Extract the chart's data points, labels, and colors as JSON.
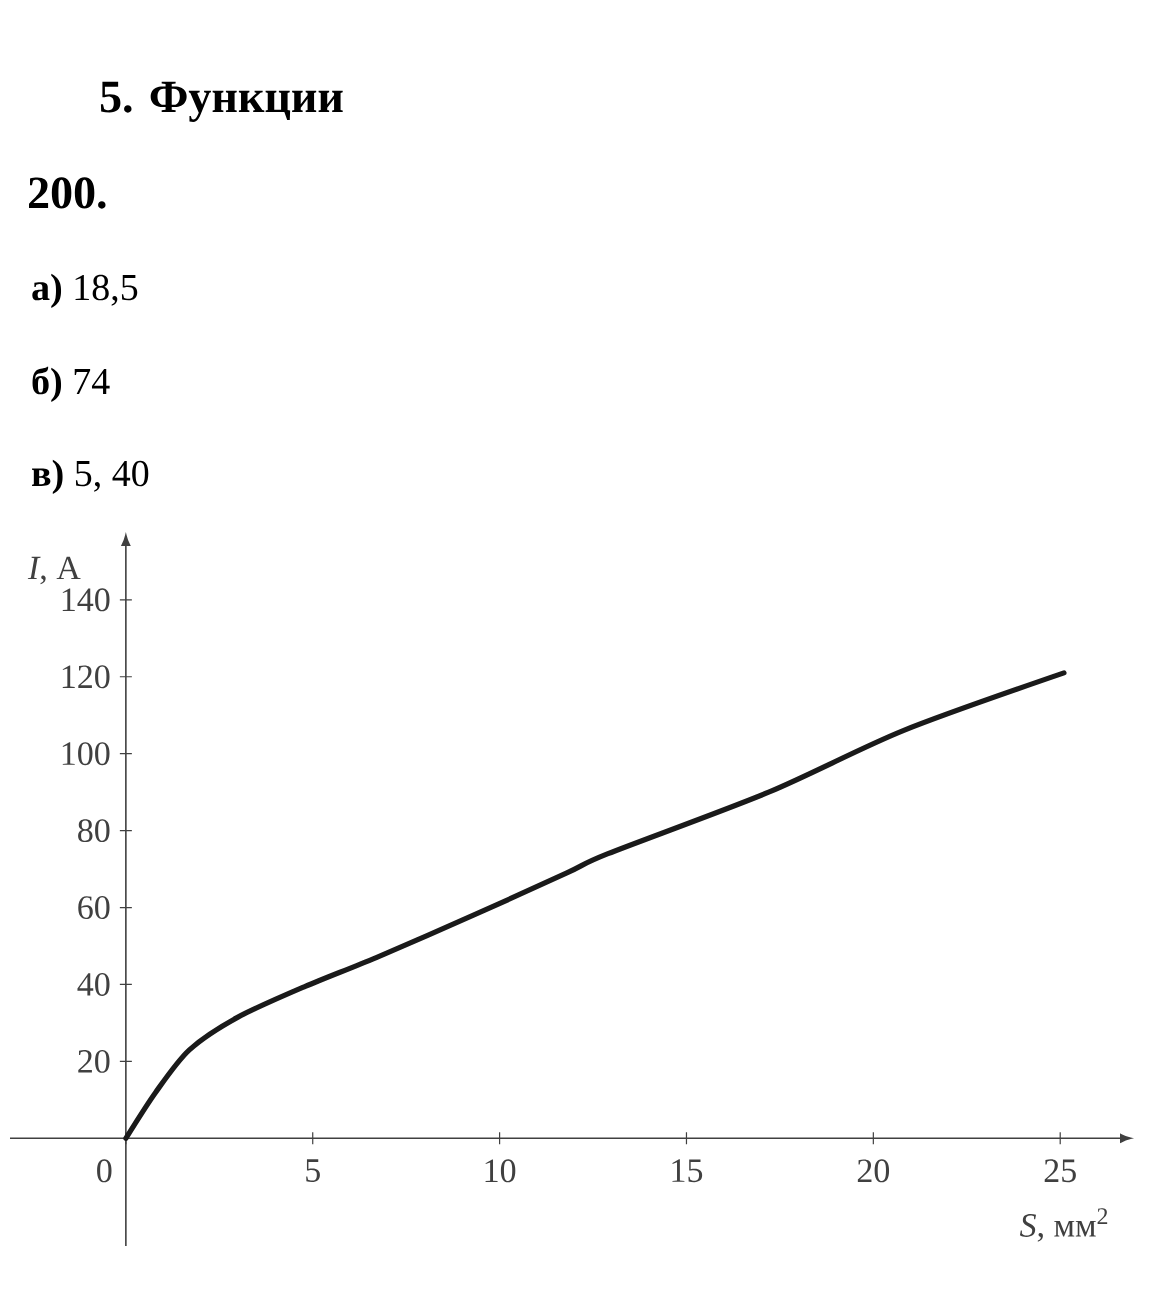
{
  "chart_data": {
    "type": "line",
    "title": "5. Функции",
    "subtitle": "200.",
    "annotations": [
      "**а)** 18,5",
      "**б)** 74",
      "**в)** 5, 40"
    ],
    "xlabel": "*S*, мм$^{2}$",
    "ylabel": "*I*, А",
    "x": [
      0,
      0.8,
      1.7,
      3,
      4.8,
      6.7,
      9.3,
      11.8,
      12.9,
      17.2,
      20.8,
      25.1
    ],
    "series": [
      {
        "color": "#1a1a1a",
        "values": [
          0,
          12,
          23,
          31.5,
          39.5,
          47,
          58,
          69,
          74,
          90,
          106,
          121
        ]
      }
    ],
    "xlim": [
      -3.1,
      26.6
    ],
    "ylim": [
      -28,
      154
    ],
    "xticks": [
      0,
      5,
      10,
      15,
      20,
      25
    ],
    "yticks": [
      20,
      40,
      60,
      80,
      100,
      120,
      140
    ]
  }
}
